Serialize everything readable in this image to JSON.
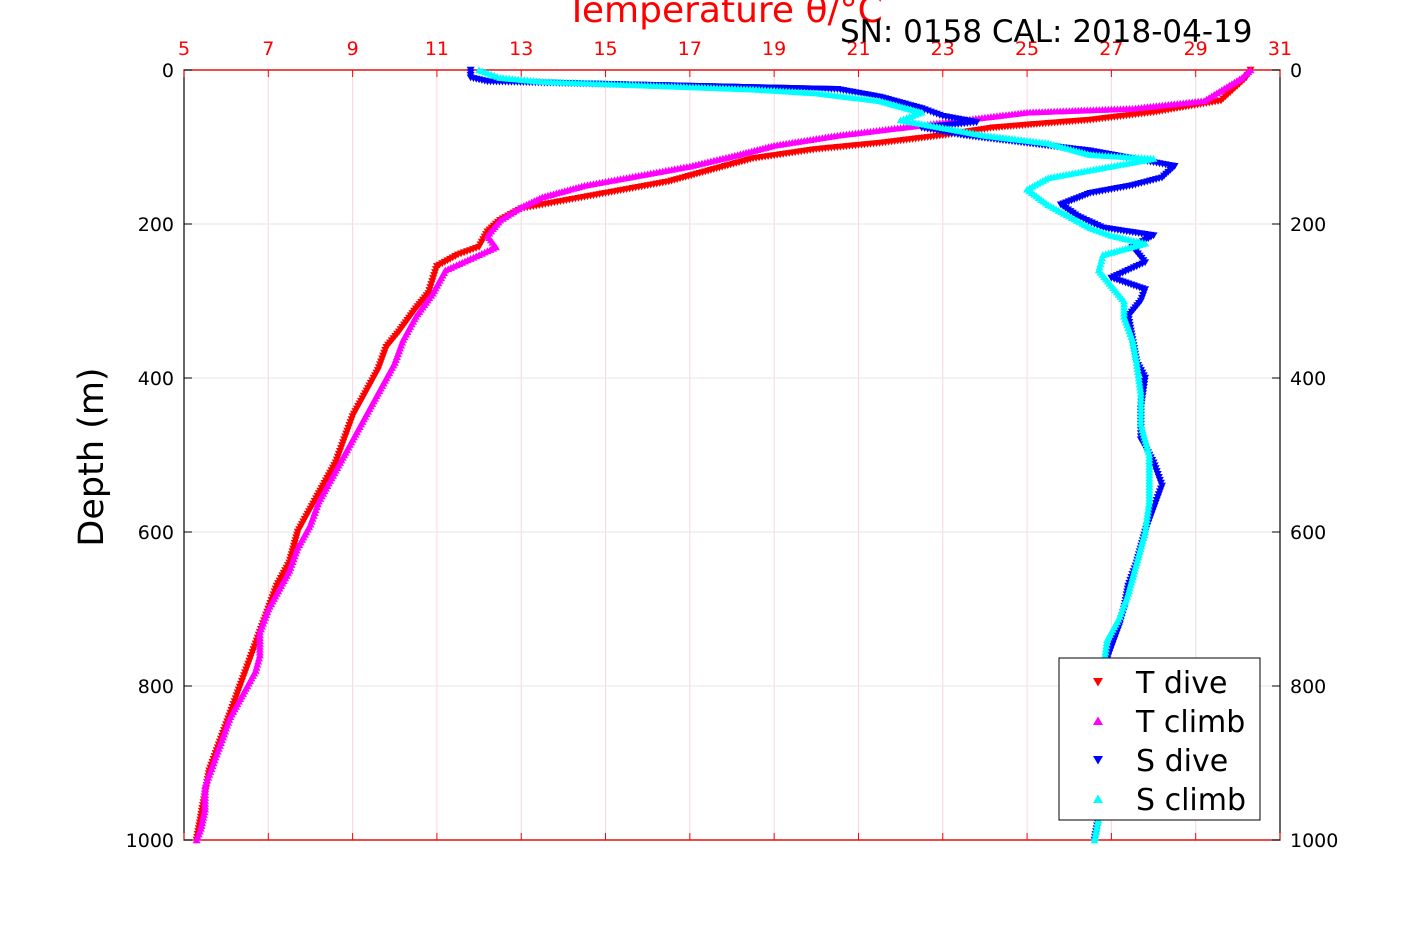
{
  "chart_data": {
    "type": "scatter",
    "title": "Temperature θ/°C",
    "subtitle": "SN: 0158  CAL: 2018-04-19",
    "xlabel": "Temperature θ/°C",
    "ylabel": "Depth (m)",
    "xlim": [
      5,
      31
    ],
    "ylim": [
      1000,
      0
    ],
    "x_ticks": [
      "5",
      "7",
      "9",
      "11",
      "13",
      "15",
      "17",
      "19",
      "21",
      "23",
      "25",
      "27",
      "29",
      "31"
    ],
    "y_ticks": [
      "0",
      "200",
      "400",
      "600",
      "800",
      "1000"
    ],
    "grid": true,
    "legend_position": "bottom-right",
    "colors": {
      "axis_top": "#ff0000",
      "t_dive": "#ff0000",
      "t_climb": "#ff00ff",
      "s_dive": "#0000ff",
      "s_climb": "#00ffff"
    },
    "series": [
      {
        "name": "T dive",
        "marker": "triangle-down",
        "color": "#ff0000",
        "points": [
          [
            30.3,
            0
          ],
          [
            30.2,
            10
          ],
          [
            29.6,
            40
          ],
          [
            28.0,
            55
          ],
          [
            26.5,
            65
          ],
          [
            25.3,
            70
          ],
          [
            24.2,
            75
          ],
          [
            23.0,
            85
          ],
          [
            21.5,
            95
          ],
          [
            20.0,
            103
          ],
          [
            18.5,
            115
          ],
          [
            17.5,
            130
          ],
          [
            16.5,
            145
          ],
          [
            15.0,
            160
          ],
          [
            14.0,
            170
          ],
          [
            13.0,
            180
          ],
          [
            12.5,
            195
          ],
          [
            12.2,
            210
          ],
          [
            12.0,
            230
          ],
          [
            11.5,
            240
          ],
          [
            11.0,
            255
          ],
          [
            10.8,
            290
          ],
          [
            10.5,
            310
          ],
          [
            10.1,
            340
          ],
          [
            9.8,
            360
          ],
          [
            9.6,
            390
          ],
          [
            9.3,
            420
          ],
          [
            9.0,
            450
          ],
          [
            8.8,
            480
          ],
          [
            8.6,
            510
          ],
          [
            8.3,
            540
          ],
          [
            8.0,
            570
          ],
          [
            7.7,
            600
          ],
          [
            7.5,
            640
          ],
          [
            7.2,
            670
          ],
          [
            7.0,
            700
          ],
          [
            6.8,
            730
          ],
          [
            6.6,
            760
          ],
          [
            6.4,
            790
          ],
          [
            6.2,
            820
          ],
          [
            6.0,
            850
          ],
          [
            5.8,
            880
          ],
          [
            5.6,
            910
          ],
          [
            5.5,
            940
          ],
          [
            5.4,
            970
          ],
          [
            5.3,
            1000
          ]
        ]
      },
      {
        "name": "T climb",
        "marker": "triangle-up",
        "color": "#ff00ff",
        "points": [
          [
            30.3,
            0
          ],
          [
            30.1,
            10
          ],
          [
            29.2,
            40
          ],
          [
            27.5,
            50
          ],
          [
            25.0,
            55
          ],
          [
            23.5,
            65
          ],
          [
            22.0,
            75
          ],
          [
            20.5,
            85
          ],
          [
            19.0,
            98
          ],
          [
            18.0,
            112
          ],
          [
            17.0,
            125
          ],
          [
            15.5,
            140
          ],
          [
            14.5,
            150
          ],
          [
            13.5,
            165
          ],
          [
            13.0,
            178
          ],
          [
            12.5,
            195
          ],
          [
            12.2,
            215
          ],
          [
            12.4,
            230
          ],
          [
            11.8,
            245
          ],
          [
            11.2,
            260
          ],
          [
            10.9,
            290
          ],
          [
            10.5,
            320
          ],
          [
            10.2,
            350
          ],
          [
            10.0,
            380
          ],
          [
            9.7,
            410
          ],
          [
            9.4,
            440
          ],
          [
            9.1,
            470
          ],
          [
            8.8,
            500
          ],
          [
            8.5,
            530
          ],
          [
            8.2,
            560
          ],
          [
            8.0,
            590
          ],
          [
            7.7,
            620
          ],
          [
            7.5,
            650
          ],
          [
            7.2,
            680
          ],
          [
            7.0,
            700
          ],
          [
            6.8,
            730
          ],
          [
            6.8,
            760
          ],
          [
            6.7,
            780
          ],
          [
            6.4,
            810
          ],
          [
            6.1,
            840
          ],
          [
            5.9,
            870
          ],
          [
            5.7,
            900
          ],
          [
            5.5,
            930
          ],
          [
            5.5,
            960
          ],
          [
            5.4,
            985
          ],
          [
            5.3,
            1000
          ]
        ]
      },
      {
        "name": "S dive",
        "marker": "triangle-down",
        "color": "#0000ff",
        "points": [
          [
            11.8,
            0
          ],
          [
            11.8,
            10
          ],
          [
            12.2,
            15
          ],
          [
            20.5,
            25
          ],
          [
            21.5,
            35
          ],
          [
            22.5,
            50
          ],
          [
            23.0,
            60
          ],
          [
            23.8,
            68
          ],
          [
            22.5,
            75
          ],
          [
            23.5,
            85
          ],
          [
            25.0,
            95
          ],
          [
            26.5,
            105
          ],
          [
            27.5,
            115
          ],
          [
            28.5,
            125
          ],
          [
            28.2,
            140
          ],
          [
            27.5,
            150
          ],
          [
            26.5,
            160
          ],
          [
            25.8,
            175
          ],
          [
            26.2,
            190
          ],
          [
            26.8,
            205
          ],
          [
            28.0,
            215
          ],
          [
            27.5,
            230
          ],
          [
            27.8,
            250
          ],
          [
            27.0,
            270
          ],
          [
            27.8,
            285
          ],
          [
            27.7,
            300
          ],
          [
            27.4,
            320
          ],
          [
            27.5,
            350
          ],
          [
            27.6,
            380
          ],
          [
            27.8,
            400
          ],
          [
            27.7,
            440
          ],
          [
            27.7,
            480
          ],
          [
            28.0,
            510
          ],
          [
            28.2,
            540
          ],
          [
            28.0,
            570
          ],
          [
            27.8,
            600
          ],
          [
            27.6,
            640
          ],
          [
            27.4,
            670
          ],
          [
            27.3,
            700
          ],
          [
            27.2,
            720
          ],
          [
            27.0,
            750
          ],
          [
            26.8,
            780
          ],
          [
            26.7,
            820
          ],
          [
            26.6,
            860
          ],
          [
            26.6,
            900
          ],
          [
            26.7,
            940
          ],
          [
            26.7,
            970
          ],
          [
            26.6,
            1000
          ]
        ]
      },
      {
        "name": "S climb",
        "marker": "triangle-up",
        "color": "#00ffff",
        "points": [
          [
            12.0,
            0
          ],
          [
            12.5,
            10
          ],
          [
            13.5,
            15
          ],
          [
            16.0,
            20
          ],
          [
            18.5,
            25
          ],
          [
            20.0,
            30
          ],
          [
            21.5,
            40
          ],
          [
            22.5,
            55
          ],
          [
            22.0,
            65
          ],
          [
            23.0,
            75
          ],
          [
            24.0,
            85
          ],
          [
            25.5,
            95
          ],
          [
            26.5,
            110
          ],
          [
            28.0,
            115
          ],
          [
            27.0,
            125
          ],
          [
            25.5,
            140
          ],
          [
            25.0,
            155
          ],
          [
            25.5,
            175
          ],
          [
            26.0,
            190
          ],
          [
            26.5,
            205
          ],
          [
            27.0,
            215
          ],
          [
            27.8,
            225
          ],
          [
            26.8,
            240
          ],
          [
            26.7,
            260
          ],
          [
            27.0,
            280
          ],
          [
            27.3,
            300
          ],
          [
            27.3,
            320
          ],
          [
            27.5,
            350
          ],
          [
            27.6,
            380
          ],
          [
            27.7,
            420
          ],
          [
            27.7,
            460
          ],
          [
            27.9,
            500
          ],
          [
            27.9,
            530
          ],
          [
            27.9,
            560
          ],
          [
            27.8,
            600
          ],
          [
            27.6,
            640
          ],
          [
            27.4,
            680
          ],
          [
            27.2,
            710
          ],
          [
            26.9,
            740
          ],
          [
            26.8,
            780
          ],
          [
            26.7,
            820
          ],
          [
            26.7,
            860
          ],
          [
            26.7,
            900
          ],
          [
            26.7,
            940
          ],
          [
            26.7,
            970
          ],
          [
            26.6,
            1000
          ]
        ]
      }
    ]
  }
}
